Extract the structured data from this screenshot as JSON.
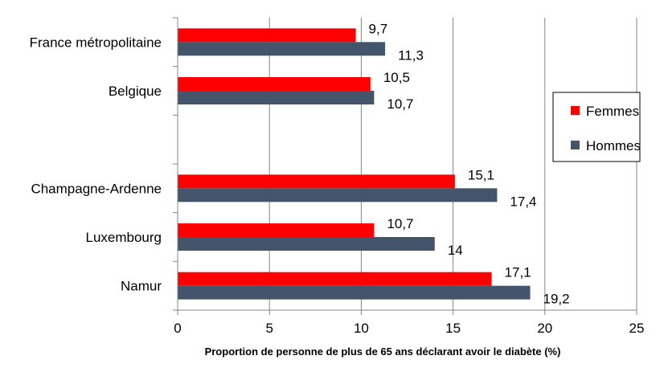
{
  "chart_data": {
    "type": "bar",
    "orientation": "horizontal",
    "categories": [
      "France métropolitaine",
      "Belgique",
      "",
      "Champagne-Ardenne",
      "Luxembourg",
      "Namur"
    ],
    "series": [
      {
        "name": "Femmes",
        "color": "#ff0000",
        "values": [
          9.7,
          10.5,
          null,
          15.1,
          10.7,
          17.1
        ],
        "labels": [
          "9,7",
          "10,5",
          "",
          "15,1",
          "10,7",
          "17,1"
        ]
      },
      {
        "name": "Hommes",
        "color": "#44546a",
        "values": [
          11.3,
          10.7,
          null,
          17.4,
          14,
          19.2
        ],
        "labels": [
          "11,3",
          "10,7",
          "",
          "17,4",
          "14",
          "19,2"
        ]
      }
    ],
    "xlabel": "Proportion de personne de plus de 65 ans déclarant avoir le diabète (%)",
    "xlim": [
      0,
      25
    ],
    "xticks": [
      0,
      5,
      10,
      15,
      20,
      25
    ],
    "grid": "vertical",
    "legend": "right"
  }
}
